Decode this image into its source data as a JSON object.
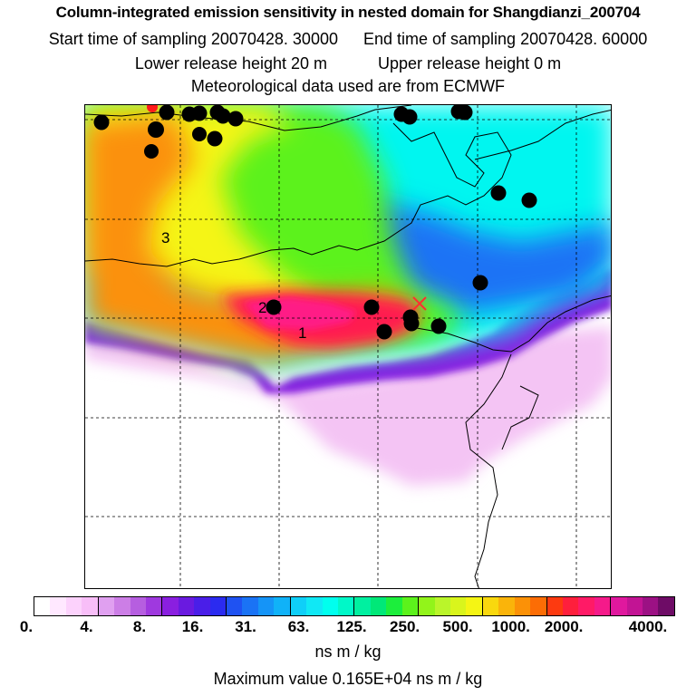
{
  "header": {
    "title": "Column-integrated emission sensitivity in nested domain for Shangdianzi_200704",
    "start_label": "Start time of sampling 20070428. 30000",
    "end_label": "End time of sampling 20070428. 60000",
    "lower_label": "Lower release height   20 m",
    "upper_label": "Upper release height    0 m",
    "met_label": "Meteorological data used are from ECMWF"
  },
  "map": {
    "cluster_labels": [
      "1",
      "2",
      "3"
    ],
    "station_marker": "x-marker",
    "markers": "filled-circle"
  },
  "colorbar": {
    "tick_labels": [
      "0.",
      "4.",
      "8.",
      "16.",
      "31.",
      "63.",
      "125.",
      "250.",
      "500.",
      "1000.",
      "2000.",
      "4000."
    ],
    "colors": [
      "#ffffff",
      "#ffe8ff",
      "#fcd2fc",
      "#f8bef8",
      "#e0a0f0",
      "#cc7ee6",
      "#b65ee0",
      "#9f39df",
      "#8a1fe0",
      "#6a1ae0",
      "#4a1ee8",
      "#2b2bf0",
      "#1f52f2",
      "#1a73f5",
      "#1594f7",
      "#10b2f8",
      "#0fcff8",
      "#10e8f5",
      "#00ffee",
      "#00f8c8",
      "#00f0a0",
      "#00e878",
      "#1cee3c",
      "#5cf21c",
      "#92f41a",
      "#baf52a",
      "#d9f51c",
      "#f5f514",
      "#f9d80e",
      "#fab40a",
      "#fb9107",
      "#fc6d05",
      "#fd3a10",
      "#fe1f3c",
      "#ff1a66",
      "#f51a8a",
      "#e0189e",
      "#c21494",
      "#9c1184",
      "#6e0c66"
    ],
    "unit": "ns m / kg"
  },
  "footer": {
    "max_value": "Maximum value  0.165E+04 ns m / kg"
  }
}
